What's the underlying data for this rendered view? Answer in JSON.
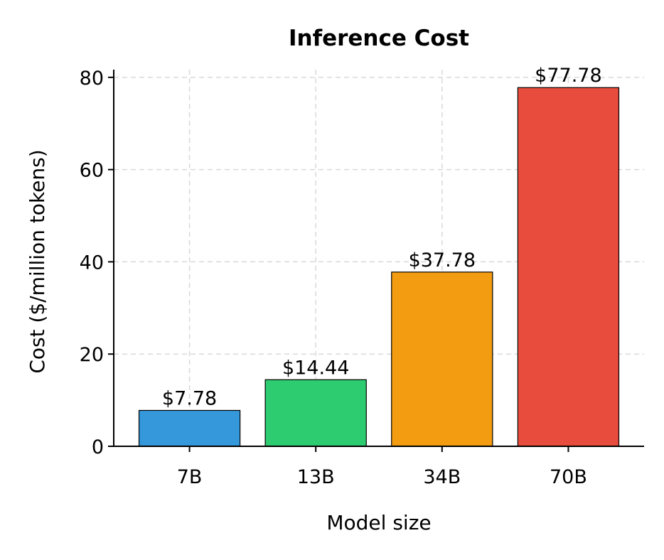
{
  "chart_data": {
    "type": "bar",
    "title": "Inference Cost",
    "xlabel": "Model size",
    "ylabel": "Cost ($/million tokens)",
    "categories": [
      "7B",
      "13B",
      "34B",
      "70B"
    ],
    "values": [
      7.78,
      14.44,
      37.78,
      77.78
    ],
    "data_labels": [
      "$7.78",
      "$14.44",
      "$37.78",
      "$77.78"
    ],
    "colors": [
      "#3498db",
      "#2ecc71",
      "#f39c12",
      "#e74c3c"
    ],
    "ylim": [
      0,
      81.67
    ],
    "yticks": [
      0,
      20,
      40,
      60,
      80
    ],
    "grid": true
  }
}
